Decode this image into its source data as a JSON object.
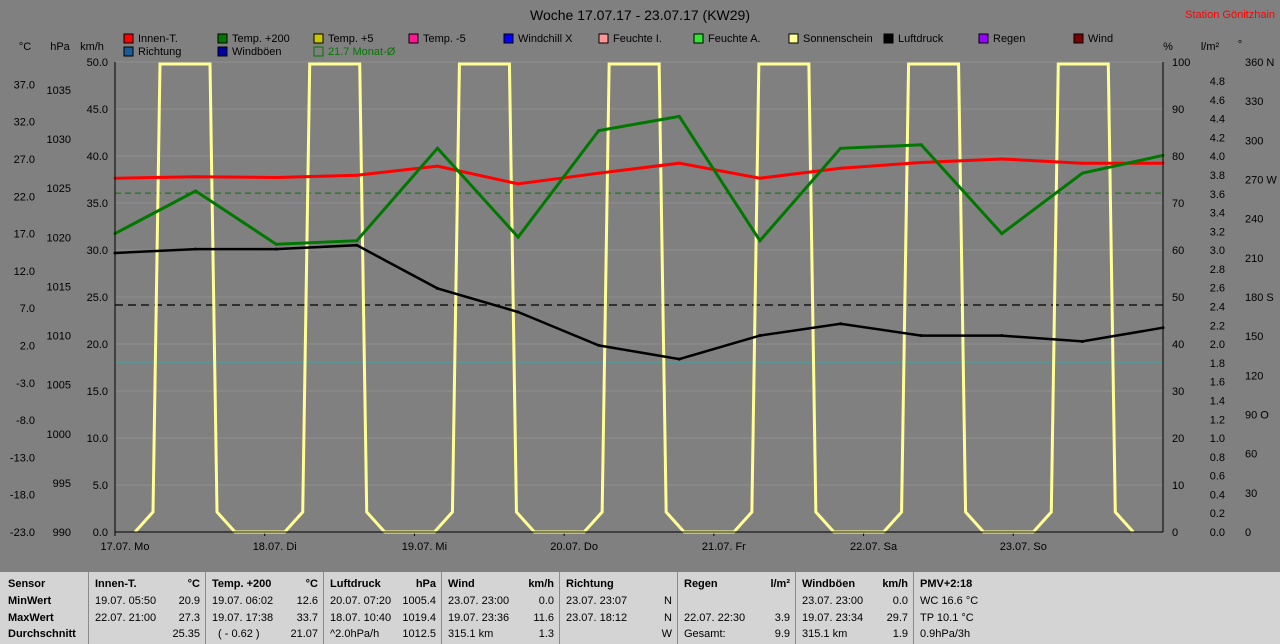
{
  "title": "Woche 17.07.17 - 23.07.17 (KW29)",
  "station": "Station Gönitzhain",
  "axis_units": {
    "temp": "°C",
    "pressure": "hPa",
    "wind": "km/h",
    "percent": "%",
    "rain": "l/m²",
    "direction": "°"
  },
  "legend": [
    {
      "label": "Innen-T.",
      "color": "#ff0000"
    },
    {
      "label": "Richtung",
      "color": "#1e5a96"
    },
    {
      "label": "Temp. +200",
      "color": "#007800"
    },
    {
      "label": "Windböen",
      "color": "#0000a0"
    },
    {
      "label": "Temp. +5",
      "color": "#c8c800"
    },
    {
      "label": "21.7 Monat-Ø",
      "color": "#007800"
    },
    {
      "label": "Temp. -5",
      "color": "#ff1493"
    },
    {
      "label": "Windchill X",
      "color": "#0000ff"
    },
    {
      "label": "Feuchte I.",
      "color": "#ff9696"
    },
    {
      "label": "Feuchte A.",
      "color": "#32e632"
    },
    {
      "label": "Sonnenschein",
      "color": "#ffff96"
    },
    {
      "label": "Luftdruck",
      "color": "#000000"
    },
    {
      "label": "Regen",
      "color": "#9600ff"
    },
    {
      "label": "Wind",
      "color": "#780000"
    }
  ],
  "chart_data": {
    "type": "line",
    "title": "Woche 17.07.17 - 23.07.17 (KW29)",
    "x_labels": [
      "17.07. Mo",
      "18.07. Di",
      "19.07. Mi",
      "20.07. Do",
      "21.07. Fr",
      "22.07. Sa",
      "23.07. So"
    ],
    "axes": {
      "temp": {
        "unit": "°C",
        "ticks": [
          "37.0",
          "32.0",
          "27.0",
          "22.0",
          "17.0",
          "12.0",
          "7.0",
          "2.0",
          "-3.0",
          "-8.0",
          "-13.0",
          "-18.0",
          "-23.0"
        ]
      },
      "pressure": {
        "unit": "hPa",
        "ticks": [
          "1035",
          "1030",
          "1025",
          "1020",
          "1015",
          "1010",
          "1005",
          "1000",
          "995",
          "990"
        ]
      },
      "wind": {
        "unit": "km/h",
        "ticks": [
          "50.0",
          "45.0",
          "40.0",
          "35.0",
          "30.0",
          "25.0",
          "20.0",
          "15.0",
          "10.0",
          "5.0",
          "0.0"
        ]
      },
      "percent": {
        "unit": "%",
        "ticks": [
          "100",
          "90",
          "80",
          "70",
          "60",
          "50",
          "40",
          "30",
          "20",
          "10",
          "0"
        ]
      },
      "rain": {
        "unit": "l/m²",
        "ticks": [
          "4.8",
          "4.6",
          "4.4",
          "4.2",
          "4.0",
          "3.8",
          "3.6",
          "3.4",
          "3.2",
          "3.0",
          "2.8",
          "2.6",
          "2.4",
          "2.2",
          "2.0",
          "1.8",
          "1.6",
          "1.4",
          "1.2",
          "1.0",
          "0.8",
          "0.6",
          "0.4",
          "0.2",
          "0.0"
        ]
      },
      "direction": {
        "unit": "°",
        "ticks": [
          "360 N",
          "330",
          "300",
          "270 W",
          "240",
          "210",
          "180 S",
          "150",
          "120",
          "90 O",
          "60",
          "30",
          "0"
        ]
      }
    },
    "monthly_avg_temp": 21.7,
    "series": [
      {
        "name": "Innen-T.",
        "unit": "°C",
        "values": [
          23.8,
          24.0,
          23.9,
          24.2,
          25.5,
          23.0,
          24.5,
          25.9,
          23.8,
          25.2,
          26.0,
          26.5,
          25.9,
          25.9
        ]
      },
      {
        "name": "Temp. +200",
        "unit": "°C",
        "values": [
          16.0,
          22.0,
          14.5,
          15.0,
          28.0,
          15.5,
          30.5,
          32.5,
          15.0,
          28.0,
          28.5,
          16.0,
          24.5,
          27.0
        ]
      },
      {
        "name": "Luftdruck",
        "unit": "hPa",
        "values": [
          1018.4,
          1018.8,
          1018.8,
          1019.2,
          1014.8,
          1012.4,
          1009.0,
          1007.6,
          1010.0,
          1011.2,
          1010.0,
          1010.0,
          1009.4,
          1010.8
        ]
      }
    ]
  },
  "table": {
    "columns": [
      {
        "header": "Sensor",
        "unit": "",
        "rows": [
          {
            "time": "MinWert",
            "value": ""
          },
          {
            "time": "MaxWert",
            "value": ""
          },
          {
            "time": "Durchschnitt",
            "value": ""
          }
        ]
      },
      {
        "header": "Innen-T.",
        "unit": "°C",
        "rows": [
          {
            "time": "19.07.  05:50",
            "value": "20.9"
          },
          {
            "time": "22.07.  21:00",
            "value": "27.3"
          },
          {
            "time": "",
            "value": "25.35"
          }
        ]
      },
      {
        "header": "Temp. +200",
        "unit": "°C",
        "rows": [
          {
            "time": "19.07.  06:02",
            "value": "12.6"
          },
          {
            "time": "19.07.  17:38",
            "value": "33.7"
          },
          {
            "time": "( - 0.62 )",
            "value": "21.07"
          }
        ]
      },
      {
        "header": "Luftdruck",
        "unit": "hPa",
        "rows": [
          {
            "time": "20.07.  07:20",
            "value": "1005.4"
          },
          {
            "time": "18.07.  10:40",
            "value": "1019.4"
          },
          {
            "time": "^2.0hPa/h",
            "value": "1012.5"
          }
        ]
      },
      {
        "header": "Wind",
        "unit": "km/h",
        "rows": [
          {
            "time": "23.07.  23:00",
            "value": "0.0"
          },
          {
            "time": "19.07.  23:36",
            "value": "11.6"
          },
          {
            "time": "315.1 km",
            "value": "1.3"
          }
        ]
      },
      {
        "header": "Richtung",
        "unit": "",
        "rows": [
          {
            "time": "23.07.  23:07",
            "value": "N"
          },
          {
            "time": "23.07.  18:12",
            "value": "N"
          },
          {
            "time": "",
            "value": "W"
          }
        ]
      },
      {
        "header": "Regen",
        "unit": "l/m²",
        "rows": [
          {
            "time": "",
            "value": ""
          },
          {
            "time": "22.07.  22:30",
            "value": "3.9"
          },
          {
            "time": "Gesamt:",
            "value": "9.9"
          }
        ]
      },
      {
        "header": "Windböen",
        "unit": "km/h",
        "rows": [
          {
            "time": "23.07.  23:00",
            "value": "0.0"
          },
          {
            "time": "19.07.  23:34",
            "value": "29.7"
          },
          {
            "time": "315.1 km",
            "value": "1.9"
          }
        ]
      },
      {
        "header": "PMV+2:18",
        "unit": "",
        "rows": [
          {
            "time": "WC 16.6 °C",
            "value": ""
          },
          {
            "time": "TP 10.1 °C",
            "value": ""
          },
          {
            "time": "0.9hPa/3h",
            "value": ""
          }
        ]
      }
    ]
  }
}
